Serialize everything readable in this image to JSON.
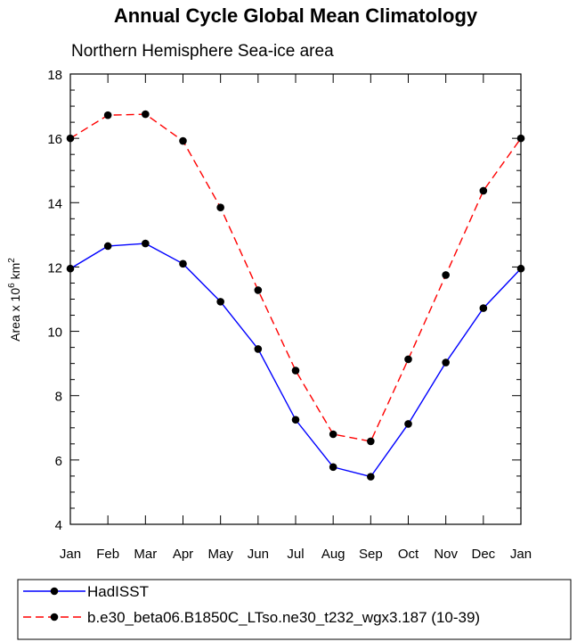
{
  "chart_data": {
    "type": "line",
    "title": "Annual Cycle Global Mean Climatology",
    "subtitle": "Northern Hemisphere Sea-ice area",
    "ylabel": {
      "prefix": "Area x 10",
      "exponent": "6",
      "unit": "km",
      "unit_exponent": "2"
    },
    "xlabel": "",
    "categories": [
      "Jan",
      "Feb",
      "Mar",
      "Apr",
      "May",
      "Jun",
      "Jul",
      "Aug",
      "Sep",
      "Oct",
      "Nov",
      "Dec",
      "Jan"
    ],
    "ylim": [
      4,
      18
    ],
    "yticks": [
      4,
      6,
      8,
      10,
      12,
      14,
      16,
      18
    ],
    "grid": false,
    "legend_position": "bottom",
    "series": [
      {
        "name": "HadISST",
        "color": "#0000ff",
        "line_style": "solid",
        "values": [
          11.95,
          12.65,
          12.73,
          12.1,
          10.92,
          9.45,
          7.25,
          5.78,
          5.48,
          7.12,
          9.03,
          10.72,
          11.95
        ]
      },
      {
        "name": "b.e30_beta06.B1850C_LTso.ne30_t232_wgx3.187 (10-39)",
        "color": "#ff0000",
        "line_style": "dashed",
        "values": [
          16.0,
          16.72,
          16.75,
          15.92,
          13.85,
          11.28,
          8.78,
          6.8,
          6.58,
          9.13,
          11.75,
          14.37,
          16.0
        ]
      }
    ]
  }
}
